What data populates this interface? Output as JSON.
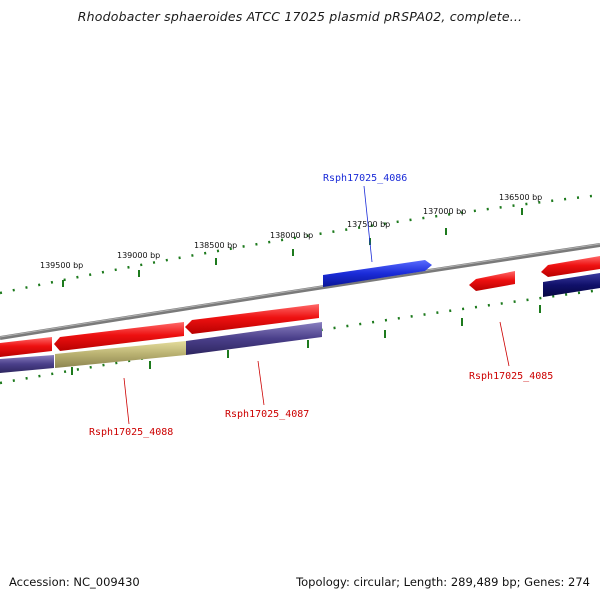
{
  "title": "Rhodobacter sphaeroides ATCC 17025 plasmid pRSPA02, complete...",
  "footer": {
    "accession": "Accession: NC_009430",
    "summary": "Topology: circular; Length: 289,489 bp; Genes: 274"
  },
  "colors": {
    "forward_gene": "#ee1111",
    "reverse_gene": "#4a3f8a",
    "highlight_gene": "#1a2bd8",
    "accent_gene": "#b8b070",
    "backbone": "#7a7a7a",
    "tick": "#1d7a1d"
  },
  "ruler": {
    "ticks": [
      "139500 bp",
      "139000 bp",
      "138500 bp",
      "138000 bp",
      "137500 bp",
      "137000 bp",
      "136500 bp"
    ]
  },
  "genes": [
    {
      "name": "Rsph17025_4086",
      "color": "#1a2bd8"
    },
    {
      "name": "Rsph17025_4085",
      "color": "#cc0000"
    },
    {
      "name": "Rsph17025_4087",
      "color": "#cc0000"
    },
    {
      "name": "Rsph17025_4088",
      "color": "#cc0000"
    }
  ]
}
